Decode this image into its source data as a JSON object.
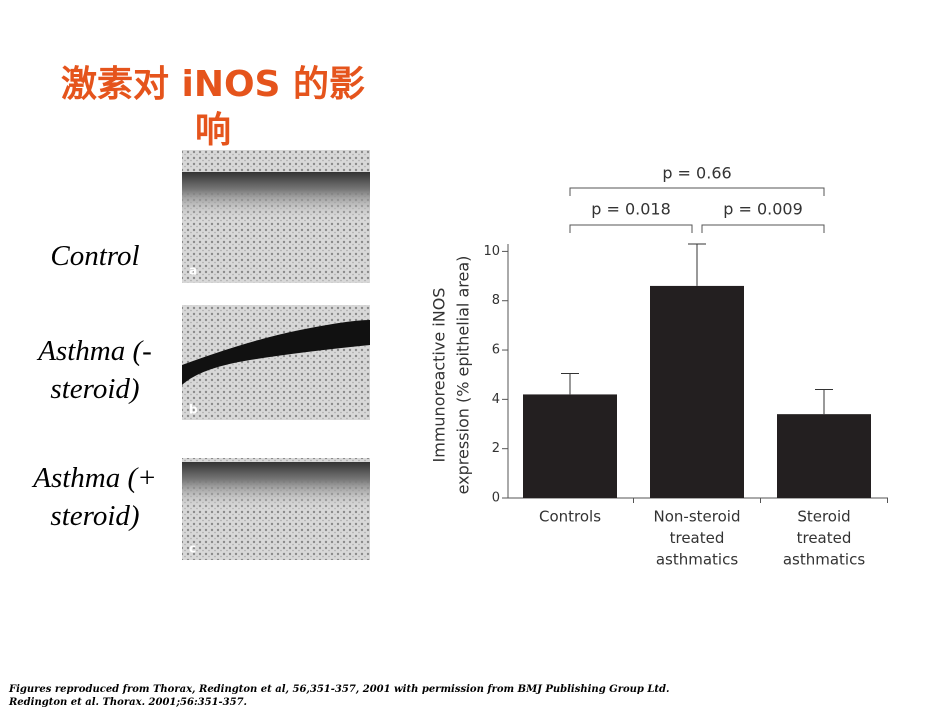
{
  "title": "激素对 iNOS 的影响",
  "panels": [
    {
      "label": "Control",
      "tag": "a"
    },
    {
      "label": "Asthma (-steroid)",
      "tag": "b"
    },
    {
      "label": "Asthma (+ steroid)",
      "tag": "c"
    }
  ],
  "footnotes": [
    "Figures reproduced from Thorax, Redington et al, 56,351-357, 2001 with permission from BMJ Publishing Group Ltd.",
    "Redington et al. Thorax. 2001;56:351-357."
  ],
  "chart_data": {
    "type": "bar",
    "ylabel": [
      "Immunoreactive iNOS",
      "expression (% epithelial area)"
    ],
    "categories": [
      [
        "Controls"
      ],
      [
        "Non-steroid",
        "treated",
        "asthmatics"
      ],
      [
        "Steroid",
        "treated",
        "asthmatics"
      ]
    ],
    "values": [
      4.2,
      8.6,
      3.4
    ],
    "errors": [
      0.85,
      1.7,
      1.0
    ],
    "color": "#231f20",
    "ylim": [
      0,
      10.3
    ],
    "yticks": [
      0,
      2,
      4,
      6,
      8,
      10
    ],
    "annotations": [
      "p = 0.66",
      "p = 0.018",
      "p = 0.009"
    ]
  }
}
